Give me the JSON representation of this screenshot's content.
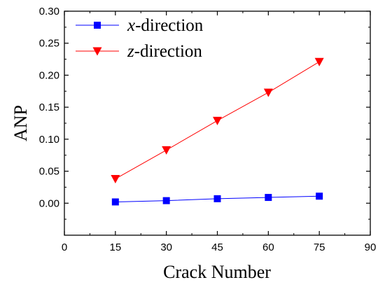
{
  "chart_data": {
    "type": "line",
    "xlabel": "Crack Number",
    "ylabel": "ANP",
    "xlim": [
      0,
      90
    ],
    "ylim": [
      -0.05,
      0.3
    ],
    "x_ticks": [
      "0",
      "15",
      "30",
      "45",
      "60",
      "75",
      "90"
    ],
    "y_ticks": [
      "0.00",
      "0.05",
      "0.10",
      "0.15",
      "0.20",
      "0.25",
      "0.30"
    ],
    "grid": false,
    "legend_position": "top-left",
    "series": [
      {
        "name_var": "x",
        "name_rest": "-direction",
        "color": "#0000ff",
        "marker": "square",
        "x": [
          15,
          30,
          45,
          60,
          75
        ],
        "values": [
          0.002,
          0.004,
          0.007,
          0.009,
          0.011
        ]
      },
      {
        "name_var": "z",
        "name_rest": "-direction",
        "color": "#ff0000",
        "marker": "triangle-down",
        "x": [
          15,
          30,
          45,
          60,
          75
        ],
        "values": [
          0.038,
          0.083,
          0.129,
          0.173,
          0.221
        ]
      }
    ]
  }
}
